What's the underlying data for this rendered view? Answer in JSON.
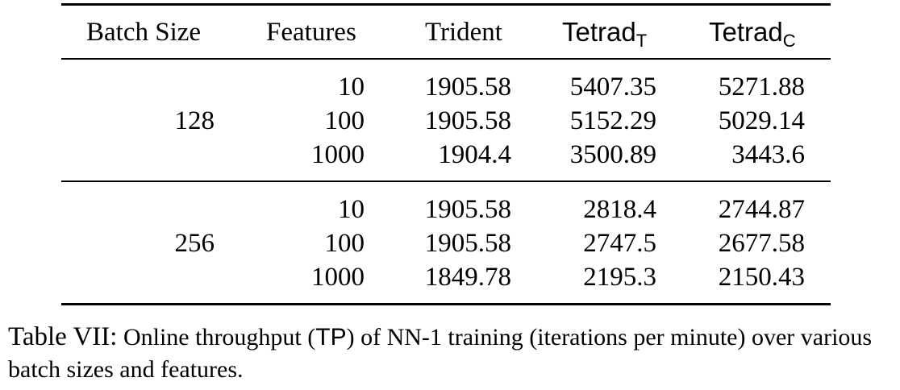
{
  "table": {
    "headers": {
      "batch_size": "Batch Size",
      "features": "Features",
      "trident": "Trident",
      "tetrad_t_base": "Tetrad",
      "tetrad_t_sub": "T",
      "tetrad_c_base": "Tetrad",
      "tetrad_c_sub": "C"
    },
    "groups": [
      {
        "batch_size": "128",
        "rows": [
          {
            "features": "10",
            "trident": "1905.58",
            "tetrad_t": "5407.35",
            "tetrad_c": "5271.88"
          },
          {
            "features": "100",
            "trident": "1905.58",
            "tetrad_t": "5152.29",
            "tetrad_c": "5029.14"
          },
          {
            "features": "1000",
            "trident": "1904.4",
            "tetrad_t": "3500.89",
            "tetrad_c": "3443.6"
          }
        ]
      },
      {
        "batch_size": "256",
        "rows": [
          {
            "features": "10",
            "trident": "1905.58",
            "tetrad_t": "2818.4",
            "tetrad_c": "2744.87"
          },
          {
            "features": "100",
            "trident": "1905.58",
            "tetrad_t": "2747.5",
            "tetrad_c": "2677.58"
          },
          {
            "features": "1000",
            "trident": "1849.78",
            "tetrad_t": "2195.3",
            "tetrad_c": "2150.43"
          }
        ]
      }
    ]
  },
  "caption": {
    "label": "Table VII:",
    "text_pre": " Online throughput (",
    "abbr": "TP",
    "text_post": ") of NN-1 training (iterations per minute) over various batch sizes and features."
  }
}
